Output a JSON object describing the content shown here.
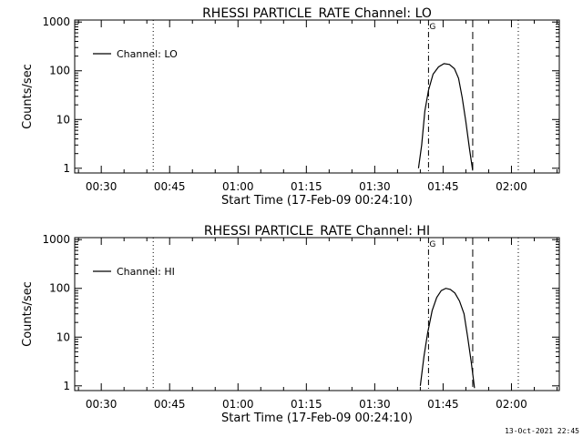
{
  "footer_timestamp": "13-Oct-2021 22:45",
  "chart_data": [
    {
      "type": "line",
      "title": "RHESSI PARTICLE_RATE Channel: LO",
      "xlabel": "Start Time (17-Feb-09 00:24:10)",
      "ylabel": "Counts/sec",
      "x_tick_labels": [
        "00:30",
        "00:45",
        "01:00",
        "01:15",
        "01:30",
        "01:45",
        "02:00"
      ],
      "x_tick_minutes": [
        30,
        45,
        60,
        75,
        90,
        105,
        120
      ],
      "xlim_minutes": [
        24.17,
        130.5
      ],
      "y_scale": "log",
      "ylim": [
        0.8,
        1100
      ],
      "y_tick_labels": [
        "1",
        "10",
        "100",
        "1000"
      ],
      "y_tick_values": [
        1,
        10,
        100,
        1000
      ],
      "legend": {
        "label": "Channel: LO",
        "placement": "top-left"
      },
      "grid": false,
      "series": [
        {
          "name": "Channel: LO",
          "x_minutes": [
            99.6,
            100.3,
            101.0,
            101.8,
            102.8,
            104.0,
            105.2,
            106.4,
            107.5,
            108.4,
            109.2,
            110.0,
            110.8,
            111.5
          ],
          "y": [
            1,
            3,
            15,
            40,
            85,
            120,
            140,
            135,
            110,
            70,
            28,
            9,
            2.5,
            0.9
          ]
        }
      ],
      "vertical_lines": [
        {
          "x_minutes": 41.4,
          "style": "dotted",
          "label": ""
        },
        {
          "x_minutes": 101.8,
          "style": "dash-dot",
          "label": "G"
        },
        {
          "x_minutes": 111.5,
          "style": "dashed",
          "label": ""
        },
        {
          "x_minutes": 121.5,
          "style": "dotted",
          "label": ""
        }
      ]
    },
    {
      "type": "line",
      "title": "RHESSI PARTICLE_RATE Channel: HI",
      "xlabel": "Start Time (17-Feb-09 00:24:10)",
      "ylabel": "Counts/sec",
      "x_tick_labels": [
        "00:30",
        "00:45",
        "01:00",
        "01:15",
        "01:30",
        "01:45",
        "02:00"
      ],
      "x_tick_minutes": [
        30,
        45,
        60,
        75,
        90,
        105,
        120
      ],
      "xlim_minutes": [
        24.17,
        130.5
      ],
      "y_scale": "log",
      "ylim": [
        0.8,
        1100
      ],
      "y_tick_labels": [
        "1",
        "10",
        "100",
        "1000"
      ],
      "y_tick_values": [
        1,
        10,
        100,
        1000
      ],
      "legend": {
        "label": "Channel: HI",
        "placement": "top-left"
      },
      "grid": false,
      "series": [
        {
          "name": "Channel: HI",
          "x_minutes": [
            100.0,
            100.8,
            101.6,
            102.6,
            103.6,
            104.6,
            105.6,
            106.6,
            107.6,
            108.6,
            109.6,
            110.4,
            111.2,
            111.9
          ],
          "y": [
            1,
            4,
            12,
            35,
            65,
            90,
            100,
            95,
            80,
            55,
            30,
            10,
            3,
            0.9
          ]
        }
      ],
      "vertical_lines": [
        {
          "x_minutes": 41.4,
          "style": "dotted",
          "label": ""
        },
        {
          "x_minutes": 101.8,
          "style": "dash-dot",
          "label": "G"
        },
        {
          "x_minutes": 111.5,
          "style": "dashed",
          "label": ""
        },
        {
          "x_minutes": 121.5,
          "style": "dotted",
          "label": ""
        }
      ]
    }
  ]
}
